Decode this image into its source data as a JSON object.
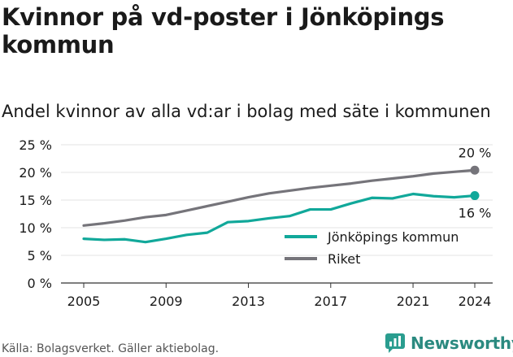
{
  "title": "Kvinnor på vd-poster i Jönköpings kommun",
  "subtitle": "Andel kvinnor av alla vd:ar i bolag med säte i kommunen",
  "footer": "Källa: Bolagsverket. Gäller aktiebolag.",
  "brand": {
    "name": "Newsworthy",
    "icon": "newsworthy-logo-icon",
    "color": "#2a9d8f"
  },
  "chart_data": {
    "type": "line",
    "x": [
      2005,
      2006,
      2007,
      2008,
      2009,
      2010,
      2011,
      2012,
      2013,
      2014,
      2015,
      2016,
      2017,
      2018,
      2019,
      2020,
      2021,
      2022,
      2023,
      2024
    ],
    "series": [
      {
        "name": "Jönköpings kommun",
        "color": "#11a89a",
        "values": [
          8.0,
          7.8,
          7.9,
          7.4,
          8.0,
          8.7,
          9.1,
          11.0,
          11.2,
          11.7,
          12.1,
          13.3,
          13.3,
          14.4,
          15.4,
          15.3,
          16.1,
          15.7,
          15.5,
          15.8
        ],
        "end_label": "16 %"
      },
      {
        "name": "Riket",
        "color": "#75747a",
        "values": [
          10.4,
          10.8,
          11.3,
          11.9,
          12.3,
          13.1,
          13.9,
          14.7,
          15.5,
          16.2,
          16.7,
          17.2,
          17.6,
          18.0,
          18.5,
          18.9,
          19.3,
          19.8,
          20.1,
          20.4
        ],
        "end_label": "20 %"
      }
    ],
    "xticks": [
      "2005",
      "2009",
      "2013",
      "2017",
      "2021",
      "2024"
    ],
    "yticks": [
      0,
      5,
      10,
      15,
      20,
      25
    ],
    "ytick_labels": [
      "0 %",
      "5 %",
      "10 %",
      "15 %",
      "20 %",
      "25 %"
    ],
    "ylim": [
      0,
      25
    ],
    "xlim": [
      2005,
      2024
    ],
    "grid": "horizontal",
    "legend": "bottom-right"
  }
}
